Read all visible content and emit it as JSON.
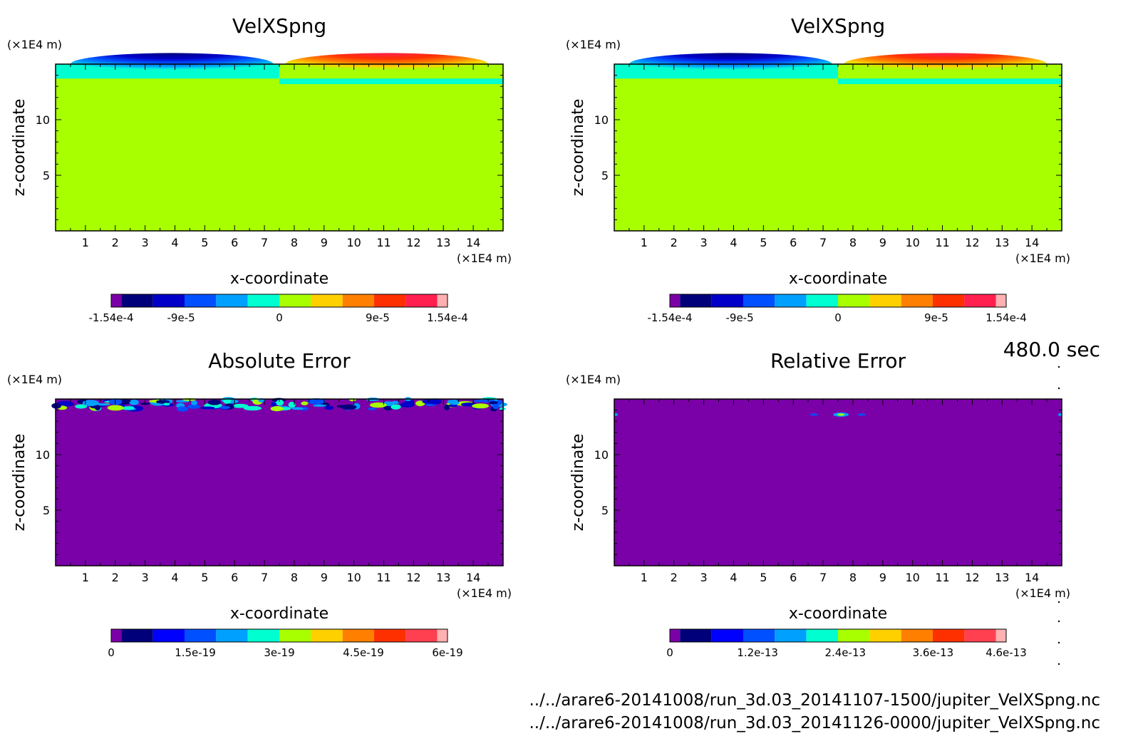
{
  "time_label": "480.0 sec",
  "footer": {
    "line1": "../../arare6-20141008/run_3d.03_20141107-1500/jupiter_VelXSpng.nc",
    "line2": "../../arare6-20141008/run_3d.03_20141126-0000/jupiter_VelXSpng.nc"
  },
  "chart_data": [
    {
      "type": "heatmap",
      "title": "VelXSpng",
      "xlabel": "x-coordinate",
      "ylabel": "z-coordinate",
      "x_unit": "(×1E4 m)",
      "y_unit": "(×1E4 m)",
      "xlim": [
        0,
        15
      ],
      "ylim": [
        0,
        15
      ],
      "x_ticks": [
        "1",
        "2",
        "3",
        "4",
        "5",
        "6",
        "7",
        "8",
        "9",
        "10",
        "11",
        "12",
        "13",
        "14"
      ],
      "y_ticks": [
        "5",
        "10"
      ],
      "background_color": "#a8ff00",
      "colorbar": {
        "colors": [
          "#7a00a8",
          "#00007a",
          "#0000c8",
          "#0050ff",
          "#00a0ff",
          "#00ffd0",
          "#a8ff00",
          "#ffd000",
          "#ff8000",
          "#ff3000",
          "#ff2050",
          "#ffb0b0"
        ],
        "labels": [
          "-1.54e-4",
          "-9e-5",
          "0",
          "9e-5",
          "1.54e-4"
        ],
        "label_values": [
          -0.000154,
          -9e-05,
          0,
          9e-05,
          0.000154
        ],
        "range": [
          -0.000154,
          0.000154
        ]
      }
    },
    {
      "type": "heatmap",
      "title": "VelXSpng",
      "xlabel": "x-coordinate",
      "ylabel": "z-coordinate",
      "x_unit": "(×1E4 m)",
      "y_unit": "(×1E4 m)",
      "xlim": [
        0,
        15
      ],
      "ylim": [
        0,
        15
      ],
      "x_ticks": [
        "1",
        "2",
        "3",
        "4",
        "5",
        "6",
        "7",
        "8",
        "9",
        "10",
        "11",
        "12",
        "13",
        "14"
      ],
      "y_ticks": [
        "5",
        "10"
      ],
      "background_color": "#a8ff00",
      "colorbar": {
        "colors": [
          "#7a00a8",
          "#00007a",
          "#0000c8",
          "#0050ff",
          "#00a0ff",
          "#00ffd0",
          "#a8ff00",
          "#ffd000",
          "#ff8000",
          "#ff3000",
          "#ff2050",
          "#ffb0b0"
        ],
        "labels": [
          "-1.54e-4",
          "-9e-5",
          "0",
          "9e-5",
          "1.54e-4"
        ],
        "label_values": [
          -0.000154,
          -9e-05,
          0,
          9e-05,
          0.000154
        ],
        "range": [
          -0.000154,
          0.000154
        ]
      }
    },
    {
      "type": "heatmap",
      "title": "Absolute Error",
      "xlabel": "x-coordinate",
      "ylabel": "z-coordinate",
      "x_unit": "(×1E4 m)",
      "y_unit": "(×1E4 m)",
      "xlim": [
        0,
        15
      ],
      "ylim": [
        0,
        15
      ],
      "x_ticks": [
        "1",
        "2",
        "3",
        "4",
        "5",
        "6",
        "7",
        "8",
        "9",
        "10",
        "11",
        "12",
        "13",
        "14"
      ],
      "y_ticks": [
        "5",
        "10"
      ],
      "background_color": "#7a00a8",
      "colorbar": {
        "colors": [
          "#7a00a8",
          "#00007a",
          "#0000ff",
          "#0050ff",
          "#00a0ff",
          "#00ffd0",
          "#a8ff00",
          "#ffd000",
          "#ff8000",
          "#ff3000",
          "#ff4050",
          "#ffb0b0"
        ],
        "labels": [
          "0",
          "1.5e-19",
          "3e-19",
          "4.5e-19",
          "6e-19"
        ],
        "label_values": [
          0,
          1.5e-19,
          3e-19,
          4.5e-19,
          6e-19
        ],
        "range": [
          0,
          6e-19
        ]
      }
    },
    {
      "type": "heatmap",
      "title": "Relative Error",
      "xlabel": "x-coordinate",
      "ylabel": "z-coordinate",
      "x_unit": "(×1E4 m)",
      "y_unit": "(×1E4 m)",
      "xlim": [
        0,
        15
      ],
      "ylim": [
        0,
        15
      ],
      "x_ticks": [
        "1",
        "2",
        "3",
        "4",
        "5",
        "6",
        "7",
        "8",
        "9",
        "10",
        "11",
        "12",
        "13",
        "14"
      ],
      "y_ticks": [
        "5",
        "10"
      ],
      "background_color": "#7a00a8",
      "colorbar": {
        "colors": [
          "#7a00a8",
          "#00007a",
          "#0000ff",
          "#0050ff",
          "#00a0ff",
          "#00ffd0",
          "#a8ff00",
          "#ffd000",
          "#ff8000",
          "#ff3000",
          "#ff4050",
          "#ffb0b0"
        ],
        "labels": [
          "0",
          "1.2e-13",
          "2.4e-13",
          "3.6e-13",
          "4.6e-13"
        ],
        "label_values": [
          0,
          1.2e-13,
          2.4e-13,
          3.6e-13,
          4.6e-13
        ],
        "range": [
          0,
          4.6e-13
        ]
      }
    }
  ]
}
